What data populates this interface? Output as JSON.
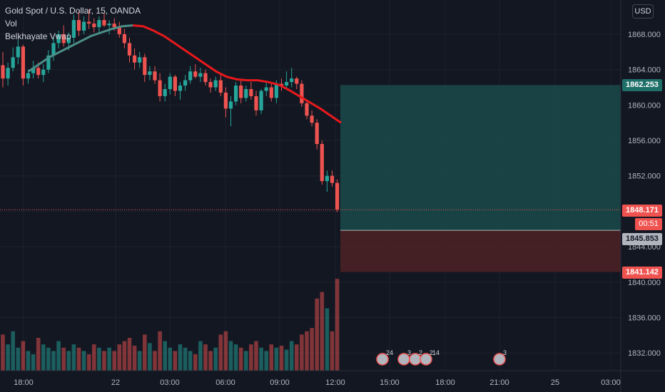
{
  "legend": {
    "symbol": "Gold Spot / U.S. Dollar, 15, OANDA",
    "vol": "Vol",
    "vwap": "Belkhayate Vwap"
  },
  "currency_button": "USD",
  "price_axis": {
    "ticks": [
      "1868.000",
      "1864.000",
      "1860.000",
      "1856.000",
      "1852.000",
      "1848.000",
      "1844.000",
      "1840.000",
      "1836.000",
      "1832.000"
    ],
    "tags": {
      "target": "1862.253",
      "current": "1848.171",
      "countdown": "00:51",
      "entry": "1845.853",
      "stop": "1841.142"
    }
  },
  "time_axis": {
    "labels": [
      "18:00",
      "22",
      "03:00",
      "06:00",
      "09:00",
      "12:00",
      "15:00",
      "18:00",
      "21:00",
      "25",
      "03:00"
    ]
  },
  "events": [
    "24",
    "3",
    "2",
    "2",
    "14",
    "3"
  ],
  "colors": {
    "background": "#131722",
    "up": "#26a69a",
    "down": "#ef5350",
    "vwap_down": "#e8191c",
    "vwap_up": "#4c8f88",
    "profit_zone": "#1a4a49",
    "loss_zone": "#4a2125"
  },
  "chart_data": {
    "type": "candlestick",
    "title": "Gold Spot / U.S. Dollar, 15, OANDA",
    "ylim": [
      1830.0,
      1870.5
    ],
    "x_labels": [
      "18:00",
      "22",
      "03:00",
      "06:00",
      "09:00",
      "12:00",
      "15:00",
      "18:00",
      "21:00",
      "25",
      "03:00"
    ],
    "candles_ohlc": [
      [
        1864.5,
        1866.0,
        1862.0,
        1863.0
      ],
      [
        1863.0,
        1864.8,
        1862.2,
        1864.2
      ],
      [
        1864.2,
        1866.5,
        1863.8,
        1865.4
      ],
      [
        1865.4,
        1867.4,
        1864.6,
        1866.6
      ],
      [
        1866.6,
        1866.8,
        1862.2,
        1863.0
      ],
      [
        1863.0,
        1864.0,
        1862.4,
        1863.6
      ],
      [
        1863.6,
        1865.0,
        1863.0,
        1864.2
      ],
      [
        1864.2,
        1864.8,
        1863.0,
        1863.4
      ],
      [
        1863.4,
        1864.6,
        1862.6,
        1864.0
      ],
      [
        1864.0,
        1866.2,
        1863.6,
        1865.6
      ],
      [
        1865.6,
        1867.6,
        1865.0,
        1867.0
      ],
      [
        1867.0,
        1868.4,
        1866.4,
        1868.0
      ],
      [
        1868.0,
        1869.0,
        1866.6,
        1867.0
      ],
      [
        1867.0,
        1868.2,
        1866.2,
        1867.6
      ],
      [
        1867.6,
        1870.2,
        1867.0,
        1869.6
      ],
      [
        1869.6,
        1870.6,
        1867.8,
        1868.4
      ],
      [
        1868.4,
        1870.0,
        1868.0,
        1869.4
      ],
      [
        1869.4,
        1870.8,
        1868.6,
        1869.2
      ],
      [
        1869.2,
        1869.8,
        1868.2,
        1868.8
      ],
      [
        1868.8,
        1870.0,
        1868.2,
        1869.6
      ],
      [
        1869.6,
        1870.4,
        1868.8,
        1869.0
      ],
      [
        1869.0,
        1869.6,
        1868.0,
        1869.2
      ],
      [
        1869.2,
        1869.8,
        1868.4,
        1868.8
      ],
      [
        1868.8,
        1869.4,
        1867.6,
        1868.0
      ],
      [
        1868.0,
        1868.6,
        1866.4,
        1867.0
      ],
      [
        1867.0,
        1867.6,
        1864.8,
        1865.6
      ],
      [
        1865.6,
        1866.4,
        1864.0,
        1864.8
      ],
      [
        1864.8,
        1866.0,
        1864.2,
        1865.4
      ],
      [
        1865.4,
        1865.8,
        1862.6,
        1863.4
      ],
      [
        1863.4,
        1864.4,
        1862.8,
        1863.8
      ],
      [
        1863.8,
        1864.4,
        1862.4,
        1862.8
      ],
      [
        1862.8,
        1863.6,
        1860.4,
        1861.0
      ],
      [
        1861.0,
        1862.4,
        1860.4,
        1861.8
      ],
      [
        1861.8,
        1863.6,
        1861.2,
        1863.2
      ],
      [
        1863.2,
        1863.4,
        1861.0,
        1861.6
      ],
      [
        1861.6,
        1862.6,
        1860.6,
        1862.2
      ],
      [
        1862.2,
        1863.4,
        1861.6,
        1862.8
      ],
      [
        1862.8,
        1864.4,
        1862.4,
        1863.8
      ],
      [
        1863.8,
        1864.6,
        1863.0,
        1863.2
      ],
      [
        1863.2,
        1864.2,
        1862.6,
        1863.6
      ],
      [
        1863.6,
        1864.0,
        1862.2,
        1862.6
      ],
      [
        1862.6,
        1863.0,
        1861.4,
        1862.0
      ],
      [
        1862.0,
        1863.2,
        1861.6,
        1862.8
      ],
      [
        1862.8,
        1863.4,
        1861.0,
        1861.4
      ],
      [
        1861.4,
        1862.0,
        1858.6,
        1859.6
      ],
      [
        1859.6,
        1861.0,
        1857.6,
        1860.4
      ],
      [
        1860.4,
        1862.6,
        1860.0,
        1862.2
      ],
      [
        1862.2,
        1862.8,
        1860.2,
        1860.8
      ],
      [
        1860.8,
        1862.2,
        1860.4,
        1861.8
      ],
      [
        1861.8,
        1862.6,
        1860.6,
        1861.0
      ],
      [
        1861.0,
        1861.6,
        1858.8,
        1859.4
      ],
      [
        1859.4,
        1861.8,
        1859.0,
        1861.6
      ],
      [
        1861.6,
        1862.6,
        1861.0,
        1862.0
      ],
      [
        1862.0,
        1862.4,
        1860.4,
        1860.8
      ],
      [
        1860.8,
        1862.8,
        1860.2,
        1862.4
      ],
      [
        1862.4,
        1863.0,
        1861.6,
        1862.2
      ],
      [
        1862.2,
        1863.8,
        1861.8,
        1862.6
      ],
      [
        1862.6,
        1864.2,
        1862.0,
        1863.0
      ],
      [
        1863.0,
        1863.2,
        1861.8,
        1862.4
      ],
      [
        1862.4,
        1862.8,
        1859.8,
        1860.2
      ],
      [
        1860.2,
        1860.6,
        1858.4,
        1858.8
      ],
      [
        1858.8,
        1859.4,
        1857.6,
        1858.0
      ],
      [
        1858.0,
        1858.4,
        1855.0,
        1855.6
      ],
      [
        1855.6,
        1856.0,
        1851.0,
        1851.4
      ],
      [
        1851.4,
        1852.6,
        1850.2,
        1852.0
      ],
      [
        1852.0,
        1852.6,
        1850.8,
        1851.2
      ],
      [
        1851.2,
        1851.6,
        1847.9,
        1848.2
      ]
    ],
    "volume": [
      55,
      40,
      60,
      35,
      45,
      30,
      25,
      50,
      40,
      35,
      30,
      45,
      35,
      30,
      40,
      35,
      30,
      25,
      40,
      35,
      30,
      35,
      30,
      40,
      45,
      50,
      38,
      30,
      55,
      42,
      30,
      60,
      45,
      35,
      30,
      40,
      35,
      30,
      25,
      45,
      40,
      30,
      35,
      55,
      60,
      45,
      40,
      35,
      30,
      40,
      45,
      35,
      30,
      40,
      35,
      38,
      32,
      45,
      40,
      55,
      60,
      65,
      110,
      120,
      95,
      60,
      140
    ],
    "vwap_values": [
      1863.8,
      1864.6,
      1865.4,
      1866.0,
      1866.6,
      1867.2,
      1867.8,
      1868.2,
      1868.6,
      1868.9,
      1869.0,
      1868.9,
      1868.4,
      1867.8,
      1867.0,
      1866.2,
      1865.4,
      1864.6,
      1863.8,
      1863.2,
      1862.9,
      1862.8,
      1862.8,
      1862.6,
      1862.3,
      1861.7,
      1861.0,
      1860.3,
      1859.6,
      1858.8,
      1858.0
    ],
    "position": {
      "target": 1862.253,
      "entry": 1845.853,
      "stop": 1841.142,
      "current": 1848.171
    }
  }
}
